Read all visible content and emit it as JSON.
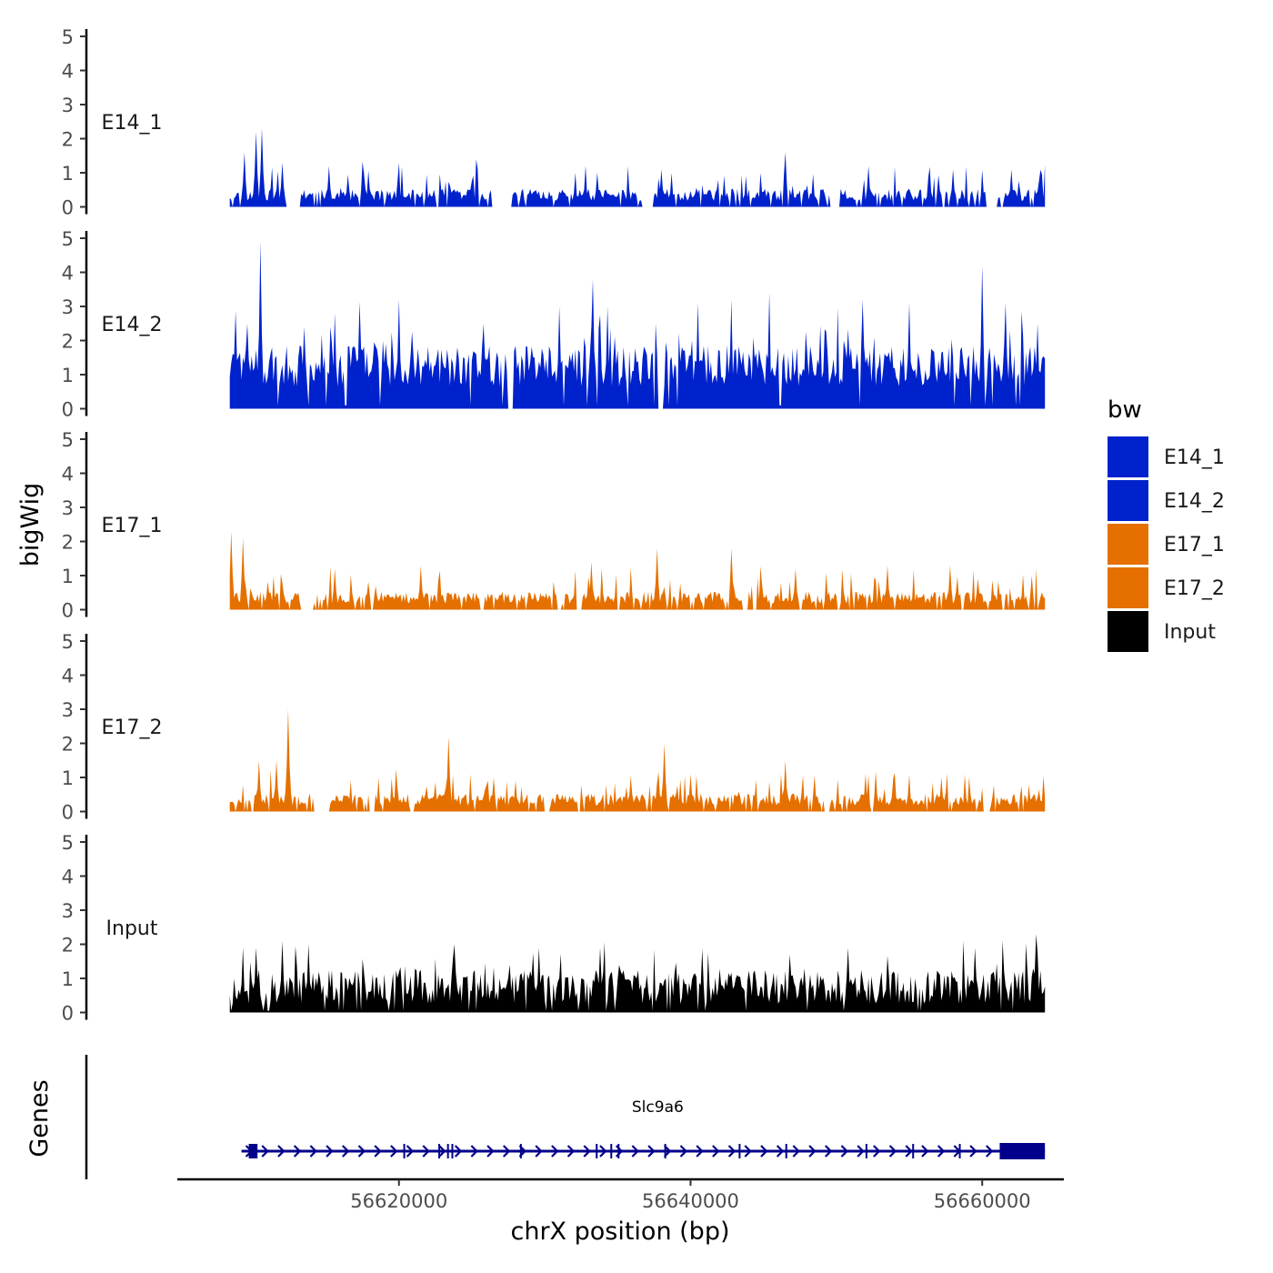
{
  "chart_data": {
    "type": "area",
    "ylabel": "bigWig",
    "xlabel": "chrX position (bp)",
    "chromosome": "chrX",
    "y_ticks": [
      0,
      1,
      2,
      3,
      4,
      5
    ],
    "ylim": [
      0,
      5
    ],
    "xlim": [
      56604800,
      56665600
    ],
    "region": [
      56608400,
      56664300
    ],
    "x_ticks": [
      {
        "value": 56620000,
        "label": "56620000"
      },
      {
        "value": 56640000,
        "label": "56640000"
      },
      {
        "value": 56660000,
        "label": "56660000"
      }
    ],
    "legend": {
      "title": "bw",
      "entries": [
        {
          "name": "E14_1",
          "color": "#0022CC"
        },
        {
          "name": "E14_2",
          "color": "#0022CC"
        },
        {
          "name": "E17_1",
          "color": "#E57000"
        },
        {
          "name": "E17_2",
          "color": "#E57000"
        },
        {
          "name": "Input",
          "color": "#000000"
        }
      ]
    },
    "tracks": [
      {
        "name": "E14_1",
        "color": "#0022CC",
        "max": 2.3,
        "peaks": [
          [
            56610200,
            2.2
          ],
          [
            56610600,
            2.3
          ],
          [
            56609400,
            1.6
          ],
          [
            56612000,
            1.3
          ],
          [
            56615200,
            1.2
          ],
          [
            56617500,
            1.1
          ],
          [
            56626600,
            1.0
          ],
          [
            56633600,
            1.0
          ],
          [
            56638000,
            1.1
          ],
          [
            56646500,
            1.6
          ],
          [
            56652200,
            1.2
          ],
          [
            56658000,
            1.1
          ],
          [
            56662000,
            1.1
          ]
        ],
        "gaps": [
          [
            56612400,
            56613200
          ],
          [
            56626400,
            56627600
          ],
          [
            56636800,
            56637400
          ],
          [
            56649600,
            56650100
          ],
          [
            56660300,
            56660700
          ]
        ],
        "seed": 11
      },
      {
        "name": "E14_2",
        "color": "#0022CC",
        "max": 5.0,
        "peaks": [
          [
            56610500,
            4.9
          ],
          [
            56608600,
            1.2
          ],
          [
            56609600,
            2.5
          ],
          [
            56613500,
            2.4
          ],
          [
            56615600,
            2.8
          ],
          [
            56620000,
            3.2
          ],
          [
            56631000,
            3.0
          ],
          [
            56633300,
            3.8
          ],
          [
            56634300,
            3.0
          ],
          [
            56640500,
            3.1
          ],
          [
            56651800,
            3.2
          ],
          [
            56655000,
            3.1
          ],
          [
            56660000,
            4.2
          ],
          [
            56661600,
            3.1
          ],
          [
            56663800,
            2.5
          ]
        ],
        "gaps": [
          [
            56627500,
            56627800
          ],
          [
            56637800,
            56638100
          ]
        ],
        "seed": 22
      },
      {
        "name": "E17_1",
        "color": "#E57000",
        "max": 2.3,
        "peaks": [
          [
            56608500,
            2.3
          ],
          [
            56609300,
            2.1
          ],
          [
            56615600,
            1.2
          ],
          [
            56621500,
            1.3
          ],
          [
            56633200,
            1.4
          ],
          [
            56637700,
            1.8
          ],
          [
            56642800,
            1.8
          ],
          [
            56647200,
            1.2
          ],
          [
            56653500,
            1.3
          ],
          [
            56657800,
            1.3
          ],
          [
            56663400,
            1.0
          ]
        ],
        "gaps": [
          [
            56613300,
            56614100
          ],
          [
            56632200,
            56632500
          ],
          [
            56643600,
            56643900
          ]
        ],
        "seed": 33
      },
      {
        "name": "E17_2",
        "color": "#E57000",
        "max": 3.0,
        "peaks": [
          [
            56612400,
            3.0
          ],
          [
            56610400,
            1.5
          ],
          [
            56611600,
            1.5
          ],
          [
            56623400,
            2.2
          ],
          [
            56638200,
            2.0
          ],
          [
            56640000,
            1.1
          ],
          [
            56646500,
            1.5
          ],
          [
            56652000,
            1.1
          ],
          [
            56657200,
            1.0
          ]
        ],
        "gaps": [
          [
            56614200,
            56615200
          ],
          [
            56620800,
            56621000
          ],
          [
            56630000,
            56630300
          ],
          [
            56649200,
            56649500
          ],
          [
            56660100,
            56660500
          ]
        ],
        "seed": 44
      },
      {
        "name": "Input",
        "color": "#000000",
        "max": 2.3,
        "peaks": [
          [
            56610200,
            1.9
          ],
          [
            56612000,
            2.1
          ],
          [
            56613800,
            2.0
          ],
          [
            56623800,
            2.0
          ],
          [
            56629600,
            1.9
          ],
          [
            56633800,
            1.9
          ],
          [
            56640800,
            1.8
          ],
          [
            56646800,
            1.7
          ],
          [
            56650800,
            1.9
          ],
          [
            56659500,
            1.9
          ],
          [
            56663700,
            2.3
          ]
        ],
        "gaps": [],
        "seed": 55
      }
    ],
    "gene_track": {
      "label": "Genes",
      "genes": [
        {
          "name": "Slc9a6",
          "strand": "+",
          "start": 56609200,
          "end": 56664300,
          "exons": [
            [
              56609700,
              56610300
            ],
            [
              56620300,
              56620400
            ],
            [
              56622700,
              56622800
            ],
            [
              56623300,
              56623400
            ],
            [
              56623600,
              56623700
            ],
            [
              56628300,
              56628400
            ],
            [
              56633500,
              56633600
            ],
            [
              56634500,
              56634600
            ],
            [
              56635000,
              56635100
            ],
            [
              56638200,
              56638300
            ],
            [
              56643300,
              56643400
            ],
            [
              56646500,
              56646600
            ],
            [
              56652000,
              56652100
            ],
            [
              56655200,
              56655300
            ],
            [
              56658400,
              56658500
            ],
            [
              56661200,
              56664300
            ]
          ]
        }
      ]
    }
  }
}
